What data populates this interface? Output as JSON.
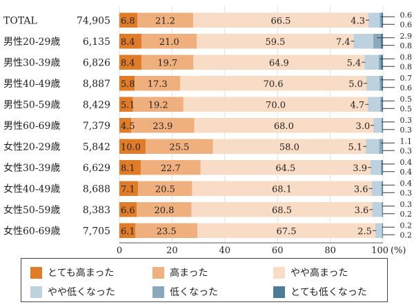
{
  "chart_data": {
    "type": "bar",
    "orientation": "horizontal",
    "stacked": true,
    "categories": [
      "TOTAL",
      "男性20-29歳",
      "男性30-39歳",
      "男性40-49歳",
      "男性50-59歳",
      "男性60-69歳",
      "女性20-29歳",
      "女性30-39歳",
      "女性40-49歳",
      "女性50-59歳",
      "女性60-69歳"
    ],
    "counts": [
      "74,905",
      "6,135",
      "6,826",
      "8,887",
      "8,429",
      "7,379",
      "5,842",
      "6,629",
      "8,688",
      "8,383",
      "7,705"
    ],
    "series": [
      {
        "name": "とても高まった",
        "color": "#e07b27",
        "values": [
          6.8,
          8.4,
          8.4,
          5.8,
          5.1,
          4.5,
          10.0,
          8.1,
          7.1,
          6.6,
          6.1
        ]
      },
      {
        "name": "高まった",
        "color": "#f0b07e",
        "values": [
          21.2,
          21.0,
          19.7,
          17.3,
          19.2,
          23.9,
          25.5,
          22.7,
          20.5,
          20.8,
          23.5
        ]
      },
      {
        "name": "やや高まった",
        "color": "#f9dcc5",
        "values": [
          66.5,
          59.5,
          64.9,
          70.6,
          70.0,
          68.0,
          58.0,
          64.5,
          68.1,
          68.5,
          67.5
        ]
      },
      {
        "name": "やや低くなった",
        "color": "#bdd2de",
        "values": [
          4.3,
          7.4,
          5.4,
          5.0,
          4.7,
          3.0,
          5.1,
          3.9,
          3.6,
          3.6,
          2.5
        ]
      },
      {
        "name": "低くなった",
        "color": "#8aa9bd",
        "values": [
          0.6,
          2.9,
          0.8,
          0.7,
          0.5,
          0.3,
          1.1,
          0.4,
          0.4,
          0.3,
          0.2
        ]
      },
      {
        "name": "とても低くなった",
        "color": "#4e7b99",
        "values": [
          0.6,
          0.8,
          0.8,
          0.6,
          0.5,
          0.3,
          0.3,
          0.4,
          0.3,
          0.2,
          0.2
        ]
      }
    ],
    "xlim": [
      0,
      100
    ],
    "x_ticks": [
      "0",
      "20",
      "40",
      "60",
      "80",
      "100"
    ],
    "x_unit": "(%)",
    "grid": true,
    "legend_position": "bottom"
  }
}
